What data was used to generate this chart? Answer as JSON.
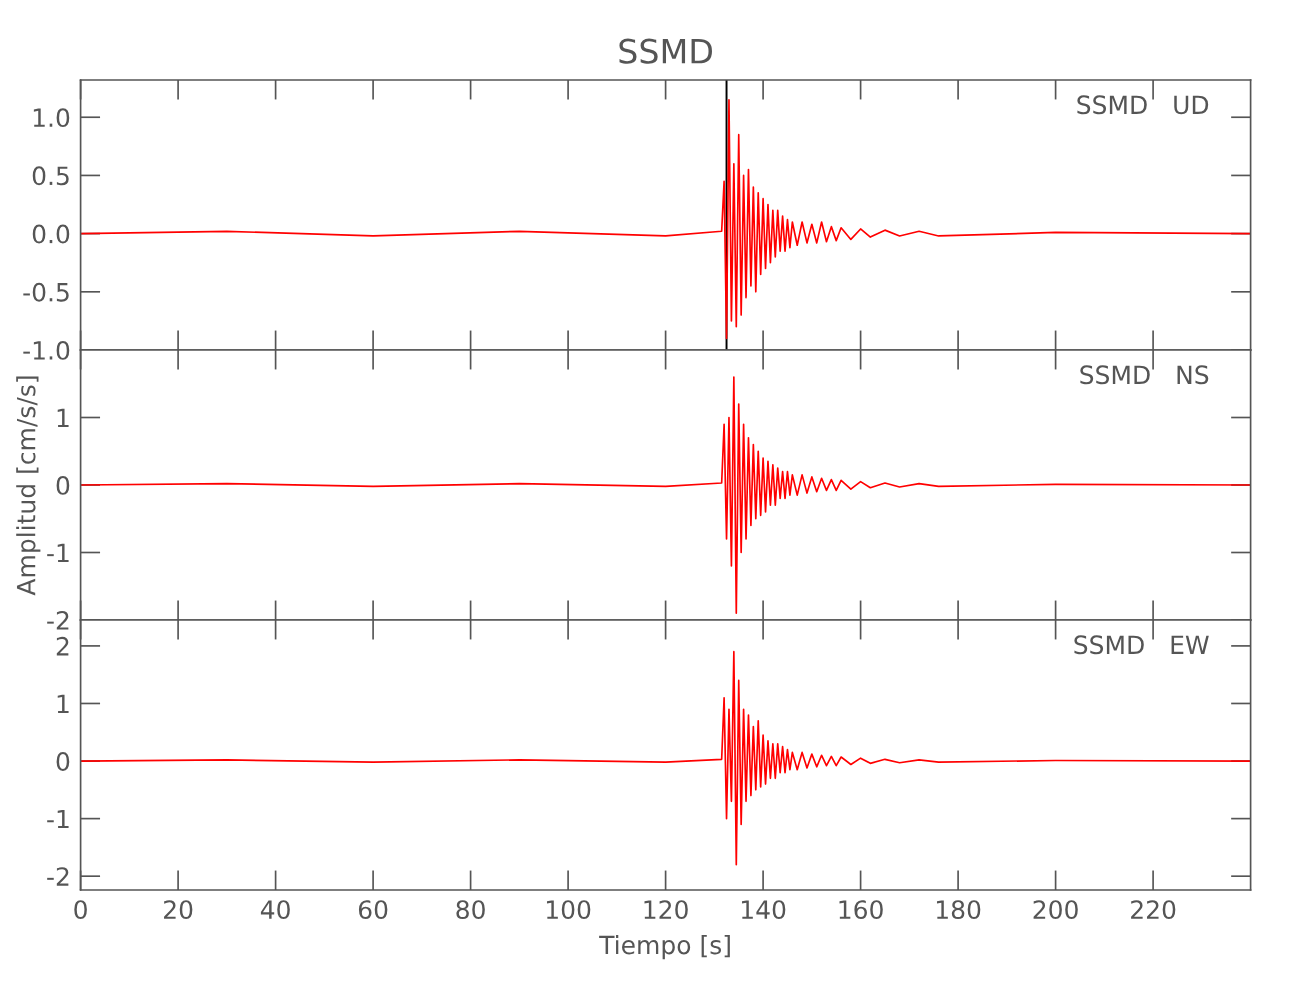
{
  "chart_data": [
    {
      "type": "line",
      "title": "SSMD",
      "annotations": [
        "SSMD   UD"
      ],
      "tick_labels": "y",
      "grid": false,
      "legend": false,
      "xlim": [
        0,
        240
      ],
      "xticks": [
        0,
        20,
        40,
        60,
        80,
        100,
        120,
        140,
        160,
        180,
        200,
        220
      ],
      "ylim": [
        -1.0,
        1.32
      ],
      "yticks": [
        {
          "value": -1.0,
          "label": "-1.0"
        },
        {
          "value": -0.5,
          "label": "-0.5"
        },
        {
          "value": 0,
          "label": "0.0"
        },
        {
          "value": 0.5,
          "label": "0.5"
        },
        {
          "value": 1.0,
          "label": "1.0"
        }
      ],
      "ref_lines": [
        {
          "axis": "x",
          "value": 132.5,
          "color": "#000000"
        }
      ],
      "series": [
        {
          "color": "#ff0000",
          "x": [
            0,
            30,
            60,
            90,
            120,
            131.5,
            132.0,
            132.5,
            133.0,
            133.5,
            134.0,
            134.5,
            135.0,
            135.5,
            136.0,
            136.5,
            137.0,
            137.5,
            138.0,
            138.5,
            139.0,
            139.5,
            140.0,
            140.5,
            141.0,
            141.5,
            142.0,
            142.5,
            143.0,
            143.5,
            144.0,
            144.5,
            145.0,
            145.5,
            146.0,
            147.0,
            148.0,
            149.0,
            150.0,
            151.0,
            152.0,
            153.0,
            154.0,
            155.0,
            156.0,
            158.0,
            160.0,
            162.0,
            165.0,
            168.0,
            172.0,
            176.0,
            200,
            240
          ],
          "values": [
            0,
            0.02,
            -0.02,
            0.02,
            -0.02,
            0.02,
            0.45,
            -0.9,
            1.15,
            -0.75,
            0.6,
            -0.8,
            0.85,
            -0.7,
            0.5,
            -0.55,
            0.55,
            -0.45,
            0.4,
            -0.5,
            0.35,
            -0.35,
            0.3,
            -0.3,
            0.25,
            -0.25,
            0.2,
            -0.2,
            0.2,
            -0.15,
            0.15,
            -0.15,
            0.12,
            -0.12,
            0.1,
            -0.1,
            0.1,
            -0.08,
            0.08,
            -0.08,
            0.1,
            -0.07,
            0.06,
            -0.06,
            0.05,
            -0.05,
            0.04,
            -0.03,
            0.03,
            -0.02,
            0.02,
            -0.02,
            0.01,
            0
          ]
        }
      ]
    },
    {
      "type": "line",
      "ylabel": "Amplitud [cm/s/s]",
      "annotations": [
        "SSMD   NS"
      ],
      "tick_labels": "y",
      "grid": false,
      "legend": false,
      "xlim": [
        0,
        240
      ],
      "xticks": [
        0,
        20,
        40,
        60,
        80,
        100,
        120,
        140,
        160,
        180,
        200,
        220
      ],
      "ylim": [
        -2,
        2
      ],
      "yticks": [
        -2,
        -1,
        0,
        1
      ],
      "series": [
        {
          "color": "#ff0000",
          "x": [
            0,
            30,
            60,
            90,
            120,
            131.5,
            132.0,
            132.5,
            133.0,
            133.5,
            134.0,
            134.5,
            135.0,
            135.5,
            136.0,
            136.5,
            137.0,
            137.5,
            138.0,
            138.5,
            139.0,
            139.5,
            140.0,
            140.5,
            141.0,
            141.5,
            142.0,
            142.5,
            143.0,
            143.5,
            144.0,
            144.5,
            145.0,
            145.5,
            146.0,
            147.0,
            148.0,
            149.0,
            150.0,
            151.0,
            152.0,
            153.0,
            154.0,
            155.0,
            156.0,
            158.0,
            160.0,
            162.0,
            165.0,
            168.0,
            172.0,
            176.0,
            200,
            240
          ],
          "values": [
            0,
            0.02,
            -0.02,
            0.02,
            -0.02,
            0.03,
            0.9,
            -0.8,
            1.0,
            -1.2,
            1.6,
            -1.9,
            1.2,
            -1.0,
            0.9,
            -0.8,
            0.7,
            -0.6,
            0.6,
            -0.5,
            0.5,
            -0.45,
            0.4,
            -0.4,
            0.35,
            -0.3,
            0.3,
            -0.3,
            0.25,
            -0.2,
            0.2,
            -0.2,
            0.2,
            -0.15,
            0.15,
            -0.15,
            0.15,
            -0.12,
            0.12,
            -0.1,
            0.1,
            -0.08,
            0.08,
            -0.08,
            0.07,
            -0.06,
            0.05,
            -0.04,
            0.03,
            -0.03,
            0.02,
            -0.02,
            0.01,
            0
          ]
        }
      ]
    },
    {
      "type": "line",
      "xlabel": "Tiempo [s]",
      "annotations": [
        "SSMD   EW"
      ],
      "grid": false,
      "legend": false,
      "xlim": [
        0,
        240
      ],
      "xticks": [
        0,
        20,
        40,
        60,
        80,
        100,
        120,
        140,
        160,
        180,
        200,
        220
      ],
      "ylim": [
        -2.24,
        2.45
      ],
      "yticks": [
        -2,
        -1,
        0,
        1,
        2
      ],
      "series": [
        {
          "color": "#ff0000",
          "x": [
            0,
            30,
            60,
            90,
            120,
            131.5,
            132.0,
            132.5,
            133.0,
            133.5,
            134.0,
            134.5,
            135.0,
            135.5,
            136.0,
            136.5,
            137.0,
            137.5,
            138.0,
            138.5,
            139.0,
            139.5,
            140.0,
            140.5,
            141.0,
            141.5,
            142.0,
            142.5,
            143.0,
            143.5,
            144.0,
            144.5,
            145.0,
            145.5,
            146.0,
            147.0,
            148.0,
            149.0,
            150.0,
            151.0,
            152.0,
            153.0,
            154.0,
            155.0,
            156.0,
            158.0,
            160.0,
            162.0,
            165.0,
            168.0,
            172.0,
            176.0,
            200,
            240
          ],
          "values": [
            0,
            0.02,
            -0.02,
            0.02,
            -0.02,
            0.03,
            1.1,
            -1.0,
            0.9,
            -0.7,
            1.9,
            -1.8,
            1.4,
            -1.1,
            0.9,
            -0.7,
            0.8,
            -0.6,
            0.6,
            -0.5,
            0.7,
            -0.45,
            0.45,
            -0.4,
            0.35,
            -0.3,
            0.3,
            -0.3,
            0.3,
            -0.2,
            0.25,
            -0.2,
            0.2,
            -0.15,
            0.15,
            -0.15,
            0.15,
            -0.12,
            0.12,
            -0.1,
            0.1,
            -0.08,
            0.08,
            -0.08,
            0.07,
            -0.06,
            0.05,
            -0.04,
            0.03,
            -0.03,
            0.02,
            -0.02,
            0.01,
            0
          ]
        }
      ]
    }
  ]
}
